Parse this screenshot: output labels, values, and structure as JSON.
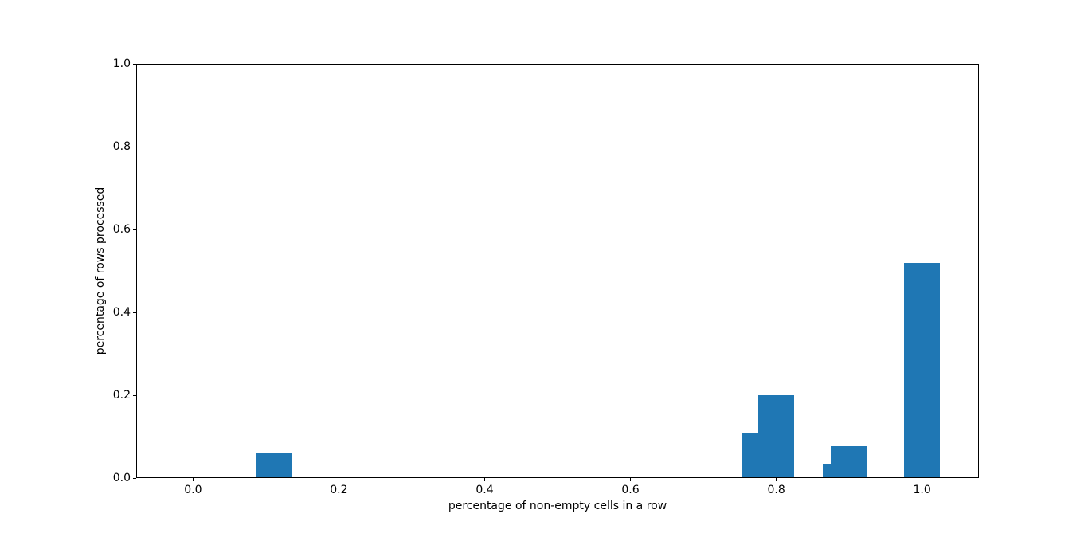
{
  "chart_data": {
    "type": "bar",
    "xlabel": "percentage of non-empty cells in a row",
    "ylabel": "percentage of rows processed",
    "bar_color": "#1f77b4",
    "spine_color": "#000000",
    "text_color": "#000000",
    "bar_width": 0.05,
    "xlim": [
      -0.078,
      1.078
    ],
    "ylim": [
      0.0,
      1.0
    ],
    "grid": false,
    "legend": null,
    "x_tick_values": [
      0.0,
      0.2,
      0.4,
      0.6,
      0.8,
      1.0
    ],
    "x_tick_labels": [
      "0.0",
      "0.2",
      "0.4",
      "0.6",
      "0.8",
      "1.0"
    ],
    "y_tick_values": [
      0.0,
      0.2,
      0.4,
      0.6,
      0.8,
      1.0
    ],
    "y_tick_labels": [
      "0.0",
      "0.2",
      "0.4",
      "0.6",
      "0.8",
      "1.0"
    ],
    "bars": [
      {
        "x": 0.111,
        "height": 0.06
      },
      {
        "x": 0.778,
        "height": 0.107
      },
      {
        "x": 0.8,
        "height": 0.2
      },
      {
        "x": 0.889,
        "height": 0.032
      },
      {
        "x": 0.9,
        "height": 0.077
      },
      {
        "x": 1.0,
        "height": 0.52
      }
    ]
  }
}
